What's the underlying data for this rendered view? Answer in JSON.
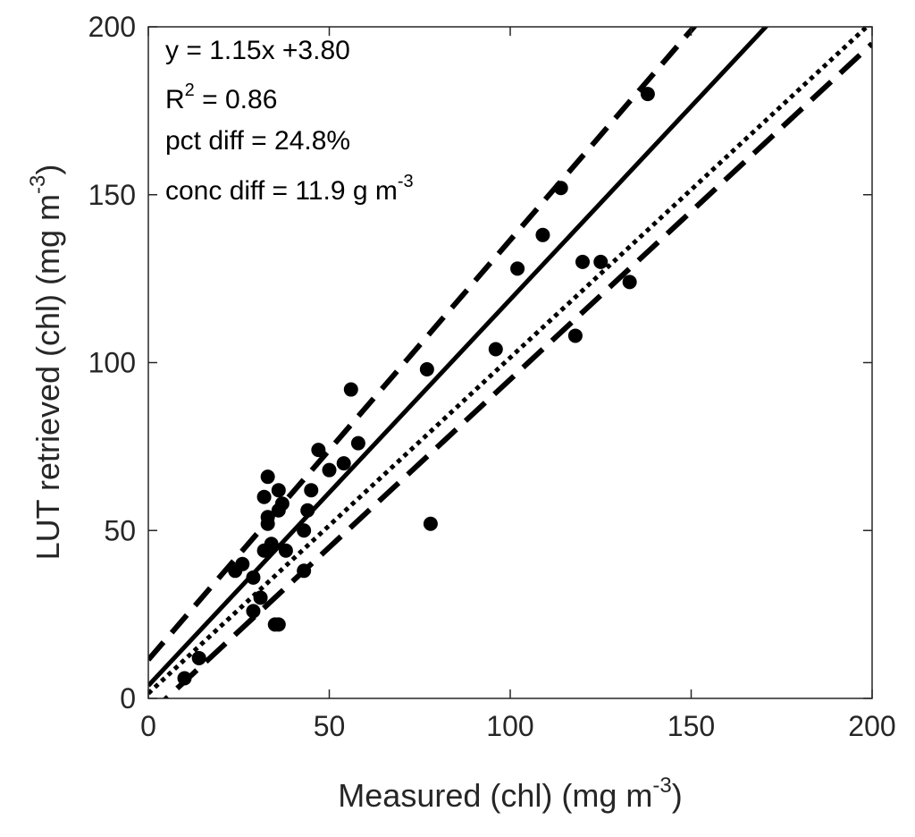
{
  "chart_data": {
    "type": "scatter",
    "xlabel": "Measured (chl) (mg m",
    "xlabel_sup": "-3",
    "xlabel_end": ")",
    "ylabel": "LUT retrieved (chl) (mg m",
    "ylabel_sup": "-3",
    "ylabel_end": ")",
    "xlim": [
      0,
      200
    ],
    "ylim": [
      0,
      200
    ],
    "xticks": [
      0,
      50,
      100,
      150,
      200
    ],
    "yticks": [
      0,
      50,
      100,
      150,
      200
    ],
    "grid": false,
    "points": [
      {
        "x": 10,
        "y": 6
      },
      {
        "x": 14,
        "y": 12
      },
      {
        "x": 24,
        "y": 38
      },
      {
        "x": 26,
        "y": 40
      },
      {
        "x": 29,
        "y": 36
      },
      {
        "x": 29,
        "y": 26
      },
      {
        "x": 31,
        "y": 30
      },
      {
        "x": 32,
        "y": 60
      },
      {
        "x": 32,
        "y": 44
      },
      {
        "x": 33,
        "y": 66
      },
      {
        "x": 33,
        "y": 54
      },
      {
        "x": 33,
        "y": 52
      },
      {
        "x": 34,
        "y": 46
      },
      {
        "x": 35,
        "y": 22
      },
      {
        "x": 36,
        "y": 22
      },
      {
        "x": 36,
        "y": 62
      },
      {
        "x": 36,
        "y": 56
      },
      {
        "x": 37,
        "y": 58
      },
      {
        "x": 38,
        "y": 44
      },
      {
        "x": 43,
        "y": 50
      },
      {
        "x": 43,
        "y": 38
      },
      {
        "x": 44,
        "y": 56
      },
      {
        "x": 45,
        "y": 62
      },
      {
        "x": 47,
        "y": 74
      },
      {
        "x": 50,
        "y": 68
      },
      {
        "x": 54,
        "y": 70
      },
      {
        "x": 56,
        "y": 92
      },
      {
        "x": 58,
        "y": 76
      },
      {
        "x": 77,
        "y": 98
      },
      {
        "x": 78,
        "y": 52
      },
      {
        "x": 96,
        "y": 104
      },
      {
        "x": 102,
        "y": 128
      },
      {
        "x": 109,
        "y": 138
      },
      {
        "x": 114,
        "y": 152
      },
      {
        "x": 118,
        "y": 108
      },
      {
        "x": 120,
        "y": 130
      },
      {
        "x": 125,
        "y": 130
      },
      {
        "x": 133,
        "y": 124
      },
      {
        "x": 138,
        "y": 180
      }
    ],
    "lines": [
      {
        "name": "fit",
        "style": "solid",
        "slope": 1.15,
        "intercept": 3.8
      },
      {
        "name": "upper-bound",
        "style": "dashed",
        "slope": 1.25,
        "intercept": 11.5
      },
      {
        "name": "one-to-one",
        "style": "dotted",
        "slope": 1.0,
        "intercept": 1.5
      },
      {
        "name": "lower-bound",
        "style": "long-dashed",
        "slope": 1.0,
        "intercept": -5
      }
    ],
    "annotations": {
      "equation": "y = 1.15x +3.80",
      "r2_prefix": "R",
      "r2_sup": "2",
      "r2_value": " = 0.86",
      "pct_diff": "pct diff = 24.8%",
      "conc_diff": "conc diff = 11.9 g m",
      "conc_diff_sup": "-3"
    }
  },
  "colors": {
    "axes": "#262626",
    "marks": "#000000",
    "background": "#ffffff"
  }
}
